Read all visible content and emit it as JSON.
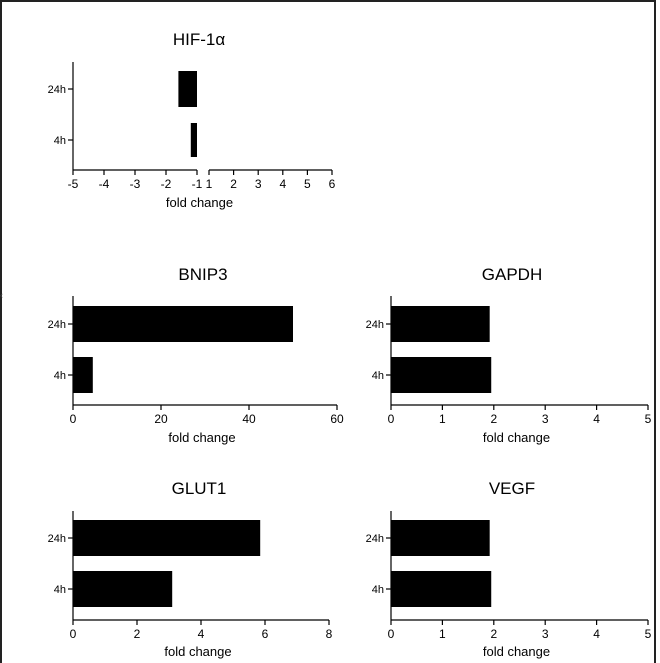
{
  "chart_data": [
    {
      "id": "hif1a",
      "type": "bar",
      "orientation": "horizontal",
      "title": "HIF-1α",
      "xlabel": "fold change",
      "categories": [
        "24h",
        "4h"
      ],
      "values": [
        -1.6,
        -1.2
      ],
      "xlim": [
        -5,
        6
      ],
      "axis_break": [
        -1,
        1
      ],
      "xticks": [
        -5,
        -4,
        -3,
        -2,
        -1,
        1,
        2,
        3,
        4,
        5,
        6
      ],
      "color": "#000000"
    },
    {
      "id": "bnip3",
      "type": "bar",
      "orientation": "horizontal",
      "title": "BNIP3",
      "xlabel": "fold change",
      "categories": [
        "24h",
        "4h"
      ],
      "values": [
        50,
        4.5
      ],
      "xlim": [
        0,
        60
      ],
      "xticks": [
        0,
        20,
        40,
        60
      ],
      "color": "#000000"
    },
    {
      "id": "gapdh",
      "type": "bar",
      "orientation": "horizontal",
      "title": "GAPDH",
      "xlabel": "fold change",
      "categories": [
        "24h",
        "4h"
      ],
      "values": [
        1.92,
        1.95
      ],
      "xlim": [
        0,
        5
      ],
      "xticks": [
        0,
        1,
        2,
        3,
        4,
        5
      ],
      "color": "#000000"
    },
    {
      "id": "glut1",
      "type": "bar",
      "orientation": "horizontal",
      "title": "GLUT1",
      "xlabel": "fold change",
      "categories": [
        "24h",
        "4h"
      ],
      "values": [
        5.85,
        3.1
      ],
      "xlim": [
        0,
        8
      ],
      "xticks": [
        0,
        2,
        4,
        6,
        8
      ],
      "color": "#000000"
    },
    {
      "id": "vegf",
      "type": "bar",
      "orientation": "horizontal",
      "title": "VEGF",
      "xlabel": "fold change",
      "categories": [
        "24h",
        "4h"
      ],
      "values": [
        1.92,
        1.95
      ],
      "xlim": [
        0,
        5
      ],
      "xticks": [
        0,
        1,
        2,
        3,
        4,
        5
      ],
      "color": "#000000"
    }
  ]
}
